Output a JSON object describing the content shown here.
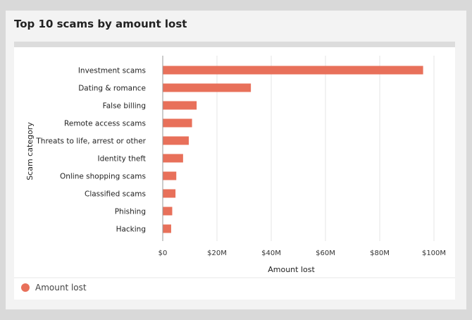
{
  "card": {
    "title": "Top 10 scams by amount lost"
  },
  "colors": {
    "bar": "#e8705a",
    "grid": "#e6e6e6",
    "axis": "#999999"
  },
  "legend": {
    "label": "Amount lost",
    "icon": "circle-dot"
  },
  "chart_data": {
    "type": "bar",
    "orientation": "horizontal",
    "title": "",
    "xlabel": "Amount lost",
    "ylabel": "Scam category",
    "xlim": [
      0,
      100000000
    ],
    "x_ticks": [
      {
        "value": 0,
        "label": "$0"
      },
      {
        "value": 20000000,
        "label": "$20M"
      },
      {
        "value": 40000000,
        "label": "$40M"
      },
      {
        "value": 60000000,
        "label": "$60M"
      },
      {
        "value": 80000000,
        "label": "$80M"
      },
      {
        "value": 100000000,
        "label": "$100M"
      }
    ],
    "grid": true,
    "legend_position": "bottom-left",
    "categories": [
      "Investment scams",
      "Dating & romance",
      "False billing",
      "Remote access scams",
      "Threats to life, arrest or other",
      "Identity theft",
      "Online shopping scams",
      "Classified scams",
      "Phishing",
      "Hacking"
    ],
    "series": [
      {
        "name": "Amount lost",
        "values": [
          96000000,
          32500000,
          12500000,
          10800000,
          9600000,
          7500000,
          5000000,
          4700000,
          3500000,
          3100000
        ]
      }
    ]
  }
}
